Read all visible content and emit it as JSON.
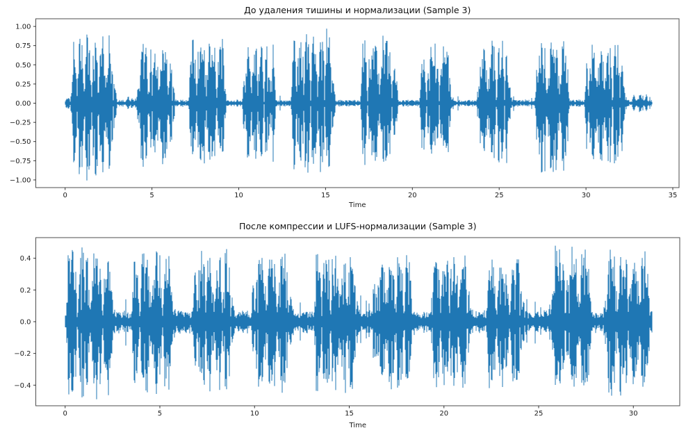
{
  "figure": {
    "background": "#ffffff",
    "n_subplots": 2
  },
  "chart_data": [
    {
      "id": "before",
      "type": "line",
      "subtype": "audio-waveform",
      "title": "До удаления тишины и нормализации (Sample 3)",
      "xlabel": "Time",
      "ylabel": "",
      "legend": null,
      "grid": false,
      "line_color": "#1f77b4",
      "xlim": [
        -1.69,
        35.36
      ],
      "ylim": [
        -1.1,
        1.1
      ],
      "xticks": [
        0,
        5,
        10,
        15,
        20,
        25,
        30,
        35
      ],
      "yticks": [
        {
          "v": 1.0,
          "label": "1.00"
        },
        {
          "v": 0.75,
          "label": "0.75"
        },
        {
          "v": 0.5,
          "label": "0.50"
        },
        {
          "v": 0.25,
          "label": "0.25"
        },
        {
          "v": 0.0,
          "label": "0.00"
        },
        {
          "v": -0.25,
          "label": "−0.25"
        },
        {
          "v": -0.5,
          "label": "−0.50"
        },
        {
          "v": -0.75,
          "label": "−0.75"
        },
        {
          "v": -1.0,
          "label": "−1.00"
        }
      ],
      "duration_s": 33.8,
      "noise_floor": 0.035,
      "bursts": [
        {
          "start": 0.0,
          "end": 0.3,
          "peak": 0.38,
          "peak_neg": 0.4
        },
        {
          "start": 0.3,
          "end": 3.0,
          "peak": 0.9,
          "peak_neg": 1.02
        },
        {
          "start": 3.5,
          "end": 3.95,
          "peak": 0.18,
          "peak_neg": 0.18
        },
        {
          "start": 4.1,
          "end": 6.35,
          "peak": 0.83,
          "peak_neg": 0.87
        },
        {
          "start": 7.1,
          "end": 9.35,
          "peak": 0.85,
          "peak_neg": 0.8
        },
        {
          "start": 10.2,
          "end": 12.2,
          "peak": 0.8,
          "peak_neg": 0.85
        },
        {
          "start": 13.0,
          "end": 15.6,
          "peak": 1.0,
          "peak_neg": 0.95
        },
        {
          "start": 17.0,
          "end": 19.2,
          "peak": 0.9,
          "peak_neg": 0.85
        },
        {
          "start": 20.4,
          "end": 22.4,
          "peak": 0.78,
          "peak_neg": 0.75
        },
        {
          "start": 23.7,
          "end": 25.7,
          "peak": 0.82,
          "peak_neg": 0.8
        },
        {
          "start": 27.0,
          "end": 29.1,
          "peak": 0.85,
          "peak_neg": 0.95
        },
        {
          "start": 29.9,
          "end": 32.3,
          "peak": 0.8,
          "peak_neg": 0.85
        },
        {
          "start": 32.6,
          "end": 33.7,
          "peak": 0.13,
          "peak_neg": 0.13
        }
      ]
    },
    {
      "id": "after",
      "type": "line",
      "subtype": "audio-waveform",
      "title": "После компрессии и LUFS-нормализации (Sample 3)",
      "xlabel": "Time",
      "ylabel": "",
      "legend": null,
      "grid": false,
      "line_color": "#1f77b4",
      "xlim": [
        -1.55,
        32.45
      ],
      "ylim": [
        -0.53,
        0.53
      ],
      "xticks": [
        0,
        5,
        10,
        15,
        20,
        25,
        30
      ],
      "yticks": [
        {
          "v": 0.4,
          "label": "0.4"
        },
        {
          "v": 0.2,
          "label": "0.2"
        },
        {
          "v": 0.0,
          "label": "0.0"
        },
        {
          "v": -0.2,
          "label": "−0.2"
        },
        {
          "v": -0.4,
          "label": "−0.4"
        }
      ],
      "duration_s": 31.0,
      "noise_floor": 0.055,
      "bursts": [
        {
          "start": 0.0,
          "end": 2.65,
          "peak": 0.48,
          "peak_neg": 0.5
        },
        {
          "start": 3.5,
          "end": 5.9,
          "peak": 0.45,
          "peak_neg": 0.46
        },
        {
          "start": 6.7,
          "end": 9.0,
          "peak": 0.46,
          "peak_neg": 0.44
        },
        {
          "start": 9.8,
          "end": 12.1,
          "peak": 0.48,
          "peak_neg": 0.46
        },
        {
          "start": 13.1,
          "end": 15.6,
          "peak": 0.44,
          "peak_neg": 0.45
        },
        {
          "start": 16.2,
          "end": 18.5,
          "peak": 0.42,
          "peak_neg": 0.44
        },
        {
          "start": 19.3,
          "end": 21.5,
          "peak": 0.44,
          "peak_neg": 0.42
        },
        {
          "start": 22.2,
          "end": 24.4,
          "peak": 0.4,
          "peak_neg": 0.42
        },
        {
          "start": 25.5,
          "end": 27.9,
          "peak": 0.48,
          "peak_neg": 0.46
        },
        {
          "start": 28.4,
          "end": 31.0,
          "peak": 0.46,
          "peak_neg": 0.47
        }
      ]
    }
  ]
}
